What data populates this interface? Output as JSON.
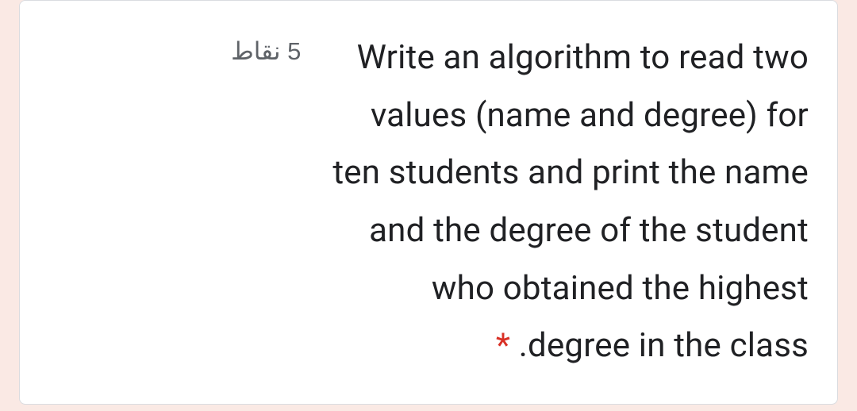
{
  "form": {
    "points_label": "5 نقاط",
    "question_lines": [
      "Write an algorithm to read two",
      "values (name and degree) for",
      "ten ",
      "students and print the name",
      "and the degree of the student",
      "who obtained the highest",
      ".degree in the class"
    ],
    "question_text_full": "Write an algorithm to read two values (name and degree) for ten students and print the name and the degree of the student who obtained the highest degree in the class.",
    "required_marker": "*",
    "styling": {
      "background_color": "#fae9e4",
      "card_background": "#ffffff",
      "card_border": "#dadce0",
      "text_color": "#202124",
      "points_color": "#5f6368",
      "asterisk_color": "#d93025",
      "question_fontsize": 42,
      "points_fontsize": 31,
      "line_height": 1.73,
      "text_align": "right",
      "direction": "rtl"
    }
  }
}
